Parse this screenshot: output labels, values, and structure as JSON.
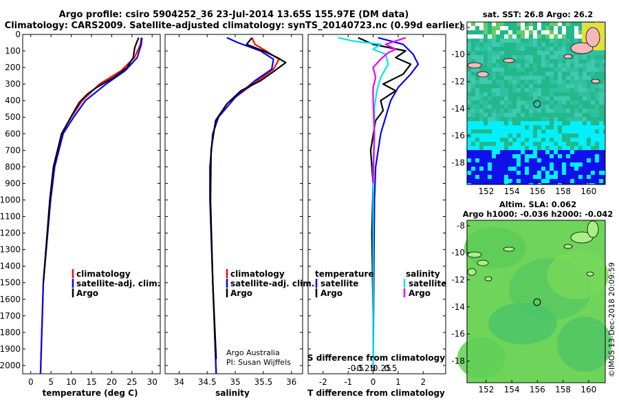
{
  "title_line1": "Argo profile: csiro 5904252_36 23-Jul-2014 13.65S 155.97E (DM data)",
  "title_line2": "Climatology: CARS2009. Satellite-adjusted climatology: synTS_20140723.nc (0.99d earlier)",
  "colors": {
    "climatology": "#ff0000",
    "satellite": "#0000ff",
    "argo": "#000000",
    "salinity_satellite": "#00e5ee",
    "salinity_argo": "#ee00ee",
    "land": "#aaee88"
  },
  "chart_data": [
    {
      "type": "line",
      "id": "temperature",
      "xlabel": "temperature (deg C)",
      "ylabel": "",
      "xlim": [
        -2,
        32
      ],
      "ylim": [
        2050,
        0
      ],
      "xticks": [
        0,
        5,
        10,
        15,
        20,
        25,
        30
      ],
      "xtick_labels": [
        "0",
        "5",
        "10",
        "15",
        "20",
        "25",
        "30"
      ],
      "yticks": [
        0,
        100,
        200,
        300,
        400,
        500,
        600,
        700,
        800,
        900,
        1000,
        1100,
        1200,
        1300,
        1400,
        1500,
        1600,
        1700,
        1800,
        1900,
        2000
      ],
      "ytick_labels": [
        "0",
        "100",
        "200",
        "300",
        "400",
        "500",
        "600",
        "700",
        "800",
        "900",
        "1000",
        "1100",
        "1200",
        "1300",
        "1400",
        "1500",
        "1600",
        "1700",
        "1800",
        "1900",
        "2000"
      ],
      "legend": [
        "climatology",
        "satellite-adj. clim.",
        "Argo"
      ],
      "series": [
        {
          "name": "climatology",
          "x": [
            27.3,
            27.1,
            25.6,
            22.3,
            17.0,
            12.7,
            10.0,
            7.6,
            5.8,
            4.8,
            3.1,
            2.4
          ],
          "y": [
            20,
            60,
            140,
            220,
            300,
            400,
            500,
            600,
            800,
            1000,
            1500,
            2050
          ]
        },
        {
          "name": "satellite-adj. clim.",
          "x": [
            27.5,
            27.3,
            26.3,
            23.3,
            18.6,
            13.5,
            10.6,
            8.0,
            5.9,
            4.9,
            3.1,
            2.4
          ],
          "y": [
            20,
            60,
            140,
            220,
            300,
            400,
            500,
            600,
            800,
            1000,
            1500,
            2050
          ]
        },
        {
          "name": "Argo",
          "x": [
            26.7,
            26.3,
            26.0,
            25.7,
            25.3,
            23.8,
            20.5,
            16.3,
            14.0,
            12.0,
            9.9,
            7.6,
            5.6,
            4.7,
            3.1
          ],
          "y": [
            20,
            40,
            60,
            80,
            140,
            200,
            260,
            320,
            360,
            410,
            500,
            600,
            800,
            1000,
            1500
          ]
        }
      ]
    },
    {
      "type": "line",
      "id": "salinity",
      "xlabel": "salinity",
      "ylabel": "",
      "xlim": [
        33.75,
        36.2
      ],
      "ylim": [
        2050,
        0
      ],
      "xticks": [
        34,
        34.5,
        35,
        35.5,
        36
      ],
      "xtick_labels": [
        "34",
        "34.5",
        "35",
        "35.5",
        "36"
      ],
      "legend": [
        "climatology",
        "satellite-adj. clim.",
        "Argo"
      ],
      "annotations": [
        "Argo Australia",
        "PI: Susan Wijffels"
      ],
      "series": [
        {
          "name": "climatology",
          "x": [
            35.3,
            35.35,
            35.55,
            35.78,
            35.68,
            35.4,
            35.0,
            34.7,
            34.6,
            34.55,
            34.55,
            34.6,
            34.66
          ],
          "y": [
            20,
            60,
            100,
            150,
            210,
            280,
            380,
            500,
            600,
            800,
            1000,
            1500,
            2050
          ]
        },
        {
          "name": "satellite-adj. clim.",
          "x": [
            34.85,
            35.05,
            35.45,
            35.68,
            35.65,
            35.35,
            35.0,
            34.7,
            34.6,
            34.55,
            34.55,
            34.6,
            34.66
          ],
          "y": [
            20,
            50,
            100,
            150,
            210,
            280,
            380,
            500,
            600,
            800,
            1000,
            1500,
            2050
          ]
        },
        {
          "name": "Argo",
          "x": [
            35.3,
            35.2,
            35.5,
            35.75,
            35.9,
            35.7,
            35.45,
            35.1,
            34.85,
            34.65,
            34.57,
            34.56,
            34.6,
            34.66
          ],
          "y": [
            20,
            60,
            100,
            140,
            170,
            220,
            280,
            340,
            420,
            520,
            700,
            1000,
            1500,
            1960
          ]
        }
      ]
    },
    {
      "type": "line",
      "id": "difference",
      "xlabel": "T difference from climatology",
      "xlabel2": "S difference from climatology",
      "xlim": [
        -2.6,
        2.9
      ],
      "ylim": [
        2050,
        0
      ],
      "xticks": [
        -2,
        -1,
        0,
        1,
        2
      ],
      "xtick_labels": [
        "-2",
        "-1",
        "0",
        "1",
        "2"
      ],
      "x2ticks": [
        -0.5,
        -0.25,
        0,
        0.25,
        0.5
      ],
      "x2tick_labels": [
        "-0.5",
        "-0.25",
        "0",
        "0.25",
        "0.5"
      ],
      "legend_temperature": [
        "temperature",
        "satellite",
        "Argo"
      ],
      "legend_salinity": [
        "salinity",
        "satellite",
        "Argo"
      ],
      "series": [
        {
          "name": "T satellite",
          "x": [
            0.2,
            1.2,
            1.6,
            1.8,
            1.5,
            1.0,
            0.7,
            0.5,
            0.3,
            0.1,
            0.05,
            0.0
          ],
          "y": [
            20,
            60,
            120,
            180,
            240,
            320,
            400,
            500,
            600,
            800,
            1000,
            2000
          ]
        },
        {
          "name": "T Argo",
          "x": [
            -0.6,
            0.0,
            1.3,
            0.9,
            1.5,
            1.2,
            0.4,
            0.9,
            0.3,
            0.4,
            0.1,
            -0.1,
            0.0,
            -0.05,
            0.0
          ],
          "y": [
            20,
            60,
            100,
            140,
            180,
            240,
            300,
            340,
            400,
            460,
            520,
            700,
            900,
            1200,
            1700
          ]
        },
        {
          "name": "S satellite",
          "x": [
            -1.4,
            -0.8,
            0.3,
            0.0,
            0.5,
            0.6,
            0.3,
            0.15,
            0.05,
            0.05,
            0.0,
            0.0
          ],
          "y": [
            20,
            40,
            60,
            90,
            120,
            180,
            260,
            340,
            440,
            560,
            800,
            2000
          ]
        },
        {
          "name": "S Argo",
          "x": [
            1.3,
            0.9,
            0.5,
            0.9,
            0.6,
            0.3,
            0.0,
            0.1,
            0.0,
            0.0,
            0.05,
            0.0
          ],
          "y": [
            20,
            40,
            60,
            90,
            110,
            150,
            200,
            260,
            320,
            400,
            600,
            900
          ]
        }
      ]
    },
    {
      "type": "heatmap",
      "id": "sst-map",
      "title": "sat. SST: 26.8  Argo: 26.2",
      "xlim": [
        150.5,
        161.3
      ],
      "ylim": [
        -19.6,
        -7.6
      ],
      "xticks": [
        152,
        154,
        156,
        158,
        160
      ],
      "xtick_labels": [
        "152",
        "154",
        "156",
        "158",
        "160"
      ],
      "yticks": [
        -8,
        -10,
        -12,
        -14,
        -16,
        -18
      ],
      "ytick_labels": [
        "-8",
        "-10",
        "-12",
        "-14",
        "-16",
        "-18"
      ],
      "float_position": [
        155.97,
        -13.65
      ]
    },
    {
      "type": "heatmap",
      "id": "sla-map",
      "title_line1": "Altim. SLA: 0.062",
      "title_line2": "Argo h1000: -0.036  h2000: -0.042",
      "xlim": [
        150.5,
        161.3
      ],
      "ylim": [
        -19.6,
        -7.6
      ],
      "xticks": [
        152,
        154,
        156,
        158,
        160
      ],
      "xtick_labels": [
        "152",
        "154",
        "156",
        "158",
        "160"
      ],
      "yticks": [
        -8,
        -10,
        -12,
        -14,
        -16,
        -18
      ],
      "ytick_labels": [
        "-8",
        "-10",
        "-12",
        "-14",
        "-16",
        "-18"
      ],
      "float_position": [
        155.97,
        -13.65
      ]
    }
  ],
  "footer_stamp": "©IMOS 13-Dec-2018 20:09:59"
}
